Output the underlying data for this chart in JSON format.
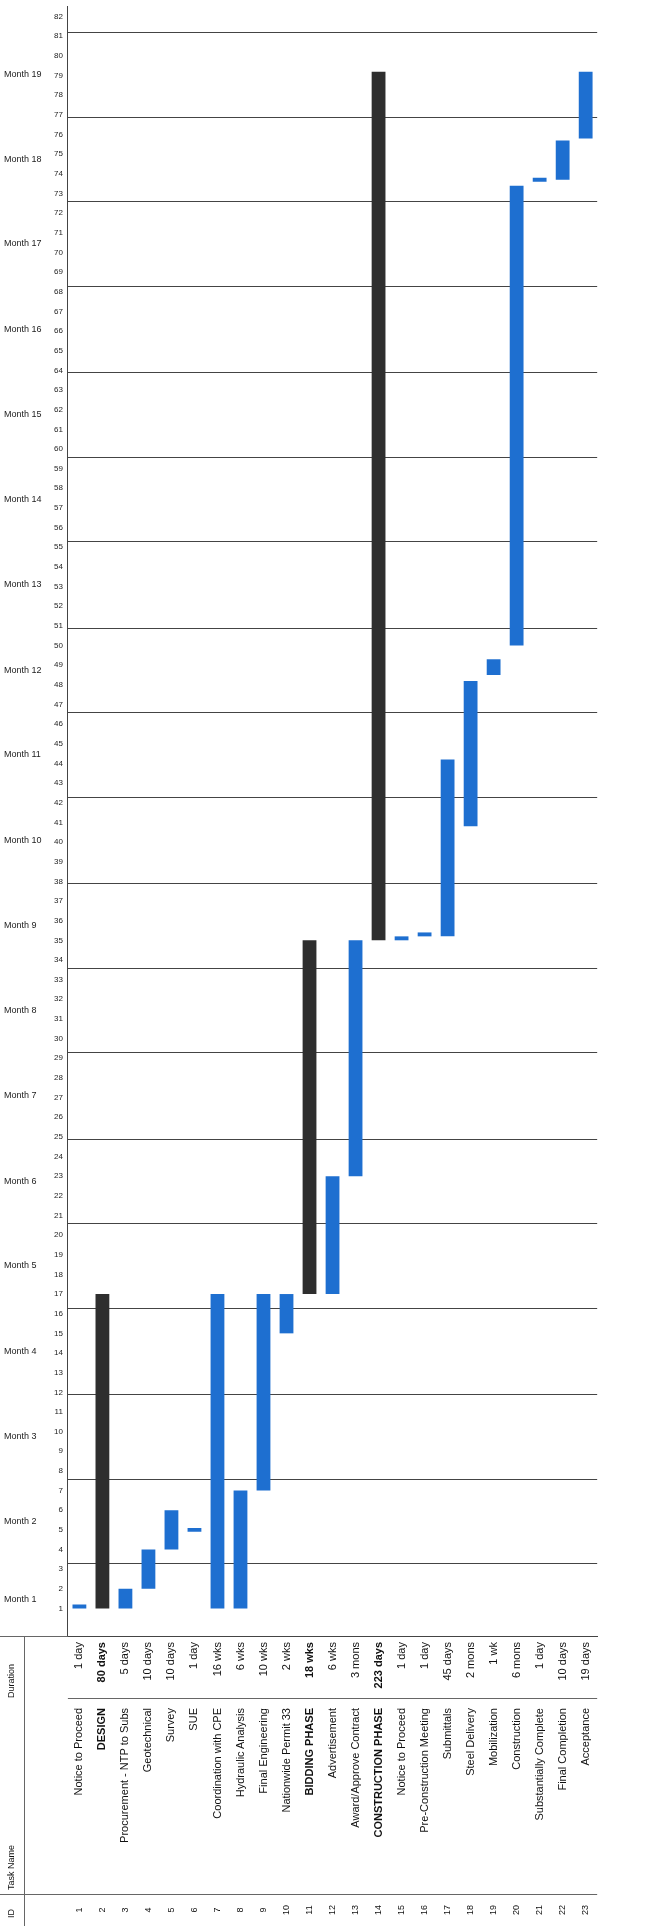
{
  "chart_data": {
    "type": "bar",
    "categories": [
      "Notice to Proceed",
      "DESIGN",
      "Procurement - NTP to Subs",
      "Geotechnical",
      "Survey",
      "SUE",
      "Coordination with CPE",
      "Hydraulic Analysis",
      "Final Engineering",
      "Nationwide Permit 33",
      "BIDDING PHASE",
      "Advertisement",
      "Award/Approve Contract",
      "CONSTRUCTION PHASE",
      "Notice to Proceed",
      "Pre-Construction Meeting",
      "Submittals",
      "Steel Delivery",
      "Mobilization",
      "Construction",
      "Substantially Complete",
      "Final Completion",
      "Acceptance"
    ],
    "y2_categories": [
      "1",
      "2",
      "3",
      "4",
      "5",
      "6",
      "7",
      "8",
      "9",
      "10",
      "11",
      "12",
      "13",
      "14",
      "15",
      "16",
      "17",
      "18",
      "19",
      "20",
      "21",
      "22",
      "23"
    ],
    "annotations": [
      "ID",
      "Task Name",
      "Duration",
      "1 day",
      "80 days",
      "5 days",
      "10 days",
      "10 days",
      "1 day",
      "16 wks",
      "6 wks",
      "10 wks",
      "2 wks",
      "18 wks",
      "6 wks",
      "3 mons",
      "223 days",
      "1 day",
      "1 day",
      "45 days",
      "2 mons",
      "1 wk",
      "6 mons",
      "1 day",
      "10 days",
      "19 days",
      "Month 1",
      "Month 2",
      "Month 3",
      "Month 4",
      "Month 5",
      "Month 6",
      "Month 7",
      "Month 8",
      "Month 9",
      "Month 10",
      "Month 11",
      "Month 12",
      "Month 13",
      "Month 14",
      "Month 15",
      "Month 16",
      "Month 17",
      "Month 18",
      "Month 19"
    ],
    "base": [
      1.0,
      1.0,
      1.0,
      2.0,
      4.0,
      4.9,
      1.0,
      1.0,
      7.0,
      15.0,
      17.0,
      17.0,
      23.0,
      35.0,
      35.0,
      35.2,
      35.2,
      40.8,
      48.5,
      50.0,
      73.6,
      73.7,
      75.8
    ],
    "values": [
      0.2,
      16,
      1,
      2,
      2,
      0.2,
      16,
      6,
      10,
      2,
      18,
      6,
      12,
      44.2,
      0.2,
      0.2,
      9,
      7.4,
      0.8,
      23.4,
      0.2,
      2,
      3.4
    ],
    "color": "#1e6fd0",
    "colors": [
      "#1e6fd0",
      "#2e2e2e",
      "#1e6fd0",
      "#1e6fd0",
      "#1e6fd0",
      "#1e6fd0",
      "#1e6fd0",
      "#1e6fd0",
      "#1e6fd0",
      "#1e6fd0",
      "#2e2e2e",
      "#1e6fd0",
      "#1e6fd0",
      "#2e2e2e",
      "#1e6fd0",
      "#1e6fd0",
      "#1e6fd0",
      "#1e6fd0",
      "#1e6fd0",
      "#1e6fd0",
      "#1e6fd0",
      "#1e6fd0",
      "#1e6fd0"
    ],
    "ylim": [
      -0.4,
      82.5
    ],
    "yticks": [
      1,
      2,
      3,
      4,
      5,
      6,
      7,
      8,
      9,
      10,
      11,
      12,
      13,
      14,
      15,
      16,
      17,
      18,
      19,
      20,
      21,
      22,
      23,
      24,
      25,
      26,
      27,
      28,
      29,
      30,
      31,
      32,
      33,
      34,
      35,
      36,
      37,
      38,
      39,
      40,
      41,
      42,
      43,
      44,
      45,
      46,
      47,
      48,
      49,
      50,
      51,
      52,
      53,
      54,
      55,
      56,
      57,
      58,
      59,
      60,
      61,
      62,
      63,
      64,
      65,
      66,
      67,
      68,
      69,
      70,
      71,
      72,
      73,
      74,
      75,
      76,
      77,
      78,
      79,
      80,
      81,
      82
    ],
    "ref_lines": [
      {
        "axis": "y",
        "value": 3.3,
        "color": "#444444"
      },
      {
        "axis": "y",
        "value": 7.6,
        "color": "#444444"
      },
      {
        "axis": "y",
        "value": 11.9,
        "color": "#444444"
      },
      {
        "axis": "y",
        "value": 16.3,
        "color": "#444444"
      },
      {
        "axis": "y",
        "value": 20.6,
        "color": "#444444"
      },
      {
        "axis": "y",
        "value": 24.9,
        "color": "#444444"
      },
      {
        "axis": "y",
        "value": 29.3,
        "color": "#444444"
      },
      {
        "axis": "y",
        "value": 33.6,
        "color": "#444444"
      },
      {
        "axis": "y",
        "value": 37.9,
        "color": "#444444"
      },
      {
        "axis": "y",
        "value": 42.3,
        "color": "#444444"
      },
      {
        "axis": "y",
        "value": 46.6,
        "color": "#444444"
      },
      {
        "axis": "y",
        "value": 50.9,
        "color": "#444444"
      },
      {
        "axis": "y",
        "value": 55.3,
        "color": "#444444"
      },
      {
        "axis": "y",
        "value": 59.6,
        "color": "#444444"
      },
      {
        "axis": "y",
        "value": 63.9,
        "color": "#444444"
      },
      {
        "axis": "y",
        "value": 68.3,
        "color": "#444444"
      },
      {
        "axis": "y",
        "value": 72.6,
        "color": "#444444"
      },
      {
        "axis": "y",
        "value": 76.9,
        "color": "#444444"
      },
      {
        "axis": "y",
        "value": 81.2,
        "color": "#444444"
      }
    ]
  }
}
